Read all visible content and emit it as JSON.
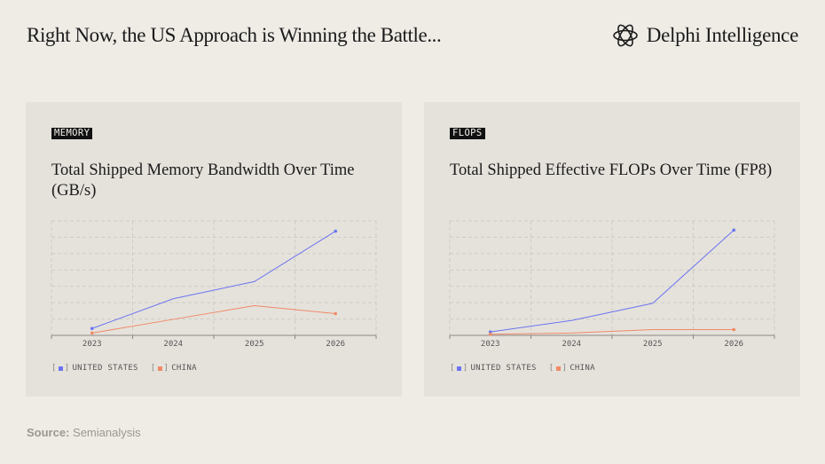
{
  "header": {
    "title": "Right Now, the US Approach is Winning the Battle...",
    "brand": "Delphi Intelligence"
  },
  "colors": {
    "us": "#6b74f0",
    "china": "#ef8a66",
    "grid": "#cfcbc4",
    "axis": "#8a8782"
  },
  "legend": {
    "us": "UNITED STATES",
    "china": "CHINA"
  },
  "chart_data": [
    {
      "tag": "MEMORY",
      "type": "line",
      "title": "Total Shipped Memory Bandwidth Over Time (GB/s)",
      "categories": [
        "2023",
        "2024",
        "2025",
        "2026"
      ],
      "ylim": [
        0,
        100
      ],
      "series": [
        {
          "name": "UNITED STATES",
          "values": [
            6,
            32,
            47,
            91
          ]
        },
        {
          "name": "CHINA",
          "values": [
            2,
            14,
            26,
            19
          ]
        }
      ]
    },
    {
      "tag": "FLOPS",
      "type": "line",
      "title": "Total Shipped Effective FLOPs Over Time (FP8)",
      "categories": [
        "2023",
        "2024",
        "2025",
        "2026"
      ],
      "ylim": [
        0,
        100
      ],
      "series": [
        {
          "name": "UNITED STATES",
          "values": [
            3,
            13,
            28,
            92
          ]
        },
        {
          "name": "CHINA",
          "values": [
            1,
            2,
            5,
            5
          ]
        }
      ]
    }
  ],
  "source": {
    "label": "Source:",
    "value": "Semianalysis"
  }
}
